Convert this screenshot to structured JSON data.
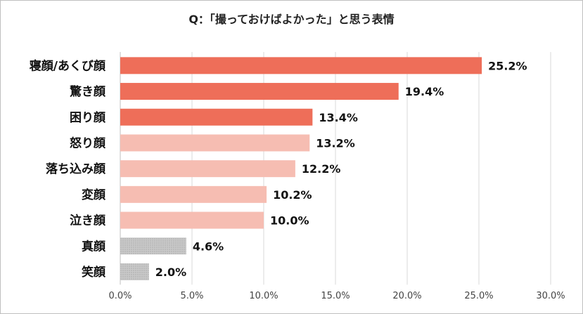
{
  "chart_data": {
    "type": "bar",
    "orientation": "horizontal",
    "title": "Q：「撮っておけばよかった」と思う表情",
    "xlabel": "",
    "ylabel": "",
    "categories": [
      "寝顔/あくび顔",
      "驚き顔",
      "困り顔",
      "怒り顔",
      "落ち込み顔",
      "変顔",
      "泣き顔",
      "真顔",
      "笑顔"
    ],
    "values": [
      25.2,
      19.4,
      13.4,
      13.2,
      12.2,
      10.2,
      10.0,
      4.6,
      2.0
    ],
    "value_labels": [
      "25.2%",
      "19.4%",
      "13.4%",
      "13.2%",
      "12.2%",
      "10.2%",
      "10.0%",
      "4.6%",
      "2.0%"
    ],
    "xlim": [
      0,
      30
    ],
    "x_ticks": [
      0,
      5,
      10,
      15,
      20,
      25,
      30
    ],
    "x_tick_labels": [
      "0.0%",
      "5.0%",
      "10.0%",
      "15.0%",
      "20.0%",
      "25.0%",
      "30.0%"
    ],
    "grid": "vertical",
    "legend": "none",
    "bar_colors": [
      "#ee6e59",
      "#ee6e59",
      "#ee6e59",
      "#f6bdb2",
      "#f6bdb2",
      "#f6bdb2",
      "#f6bdb2",
      "#c9c9c9",
      "#c9c9c9"
    ],
    "grid_color": "#d9d9d9"
  }
}
